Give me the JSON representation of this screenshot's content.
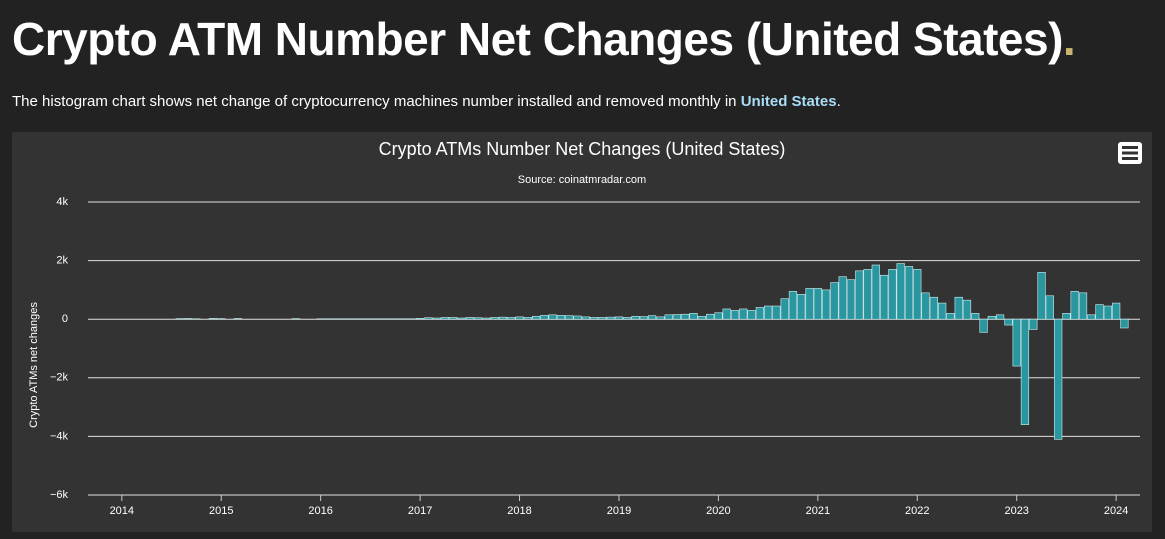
{
  "page_title": "Crypto ATM Number Net Changes (United States)",
  "title_dot": ".",
  "intro": {
    "text_before": "The histogram chart shows net change of cryptocurrency machines number installed and removed monthly in ",
    "link": "United States",
    "text_after": "."
  },
  "chart_data": {
    "type": "bar",
    "title": "Crypto ATMs Number Net Changes (United States)",
    "subtitle": "Source: coinatmradar.com",
    "y_label": "Crypto ATMs net changes",
    "color": "#2a97a0",
    "grid": true,
    "xlim": [
      2013.66,
      2024.24
    ],
    "xticks": [
      2014,
      2015,
      2016,
      2017,
      2018,
      2019,
      2020,
      2021,
      2022,
      2023,
      2024
    ],
    "ylim": [
      -6000,
      4000
    ],
    "yticks": [
      {
        "value": -6000,
        "label": "−6k"
      },
      {
        "value": -4000,
        "label": "−4k"
      },
      {
        "value": -2000,
        "label": "−2k"
      },
      0,
      {
        "value": 2000,
        "label": "2k"
      },
      {
        "value": 4000,
        "label": "4k"
      }
    ],
    "x": [
      2014.583,
      2014.667,
      2014.75,
      2014.833,
      2014.917,
      2015,
      2015.083,
      2015.167,
      2015.25,
      2015.333,
      2015.417,
      2015.5,
      2015.583,
      2015.667,
      2015.75,
      2015.833,
      2015.917,
      2016,
      2016.083,
      2016.167,
      2016.25,
      2016.333,
      2016.417,
      2016.5,
      2016.583,
      2016.667,
      2016.75,
      2016.833,
      2016.917,
      2017,
      2017.083,
      2017.167,
      2017.25,
      2017.333,
      2017.417,
      2017.5,
      2017.583,
      2017.667,
      2017.75,
      2017.833,
      2017.917,
      2018,
      2018.083,
      2018.167,
      2018.25,
      2018.333,
      2018.417,
      2018.5,
      2018.583,
      2018.667,
      2018.75,
      2018.833,
      2018.917,
      2019,
      2019.083,
      2019.167,
      2019.25,
      2019.333,
      2019.417,
      2019.5,
      2019.583,
      2019.667,
      2019.75,
      2019.833,
      2019.917,
      2020,
      2020.083,
      2020.167,
      2020.25,
      2020.333,
      2020.417,
      2020.5,
      2020.583,
      2020.667,
      2020.75,
      2020.833,
      2020.917,
      2021,
      2021.083,
      2021.167,
      2021.25,
      2021.333,
      2021.417,
      2021.5,
      2021.583,
      2021.667,
      2021.75,
      2021.833,
      2021.917,
      2022,
      2022.083,
      2022.167,
      2022.25,
      2022.333,
      2022.417,
      2022.5,
      2022.583,
      2022.667,
      2022.75,
      2022.833,
      2022.917,
      2023,
      2023.083,
      2023.167,
      2023.25,
      2023.333,
      2023.417,
      2023.5,
      2023.583,
      2023.667,
      2023.75,
      2023.833,
      2023.917,
      2024,
      2024.083
    ],
    "values": [
      20,
      25,
      15,
      0,
      30,
      20,
      0,
      25,
      0,
      0,
      0,
      0,
      0,
      0,
      20,
      0,
      0,
      15,
      15,
      15,
      15,
      15,
      15,
      15,
      15,
      15,
      15,
      15,
      15,
      30,
      50,
      40,
      60,
      60,
      40,
      60,
      50,
      40,
      60,
      70,
      60,
      80,
      60,
      100,
      130,
      150,
      130,
      120,
      110,
      80,
      60,
      60,
      70,
      80,
      60,
      100,
      90,
      120,
      80,
      150,
      160,
      170,
      200,
      100,
      170,
      220,
      350,
      300,
      350,
      300,
      400,
      450,
      450,
      700,
      950,
      850,
      1050,
      1050,
      1000,
      1250,
      1450,
      1350,
      1650,
      1700,
      1850,
      1500,
      1700,
      1900,
      1800,
      1700,
      900,
      750,
      550,
      200,
      750,
      650,
      200,
      -450,
      100,
      150,
      -200,
      -1600,
      -3600,
      -350,
      1600,
      800,
      -4100,
      200,
      950,
      900,
      150,
      500,
      450,
      550,
      -300
    ]
  }
}
